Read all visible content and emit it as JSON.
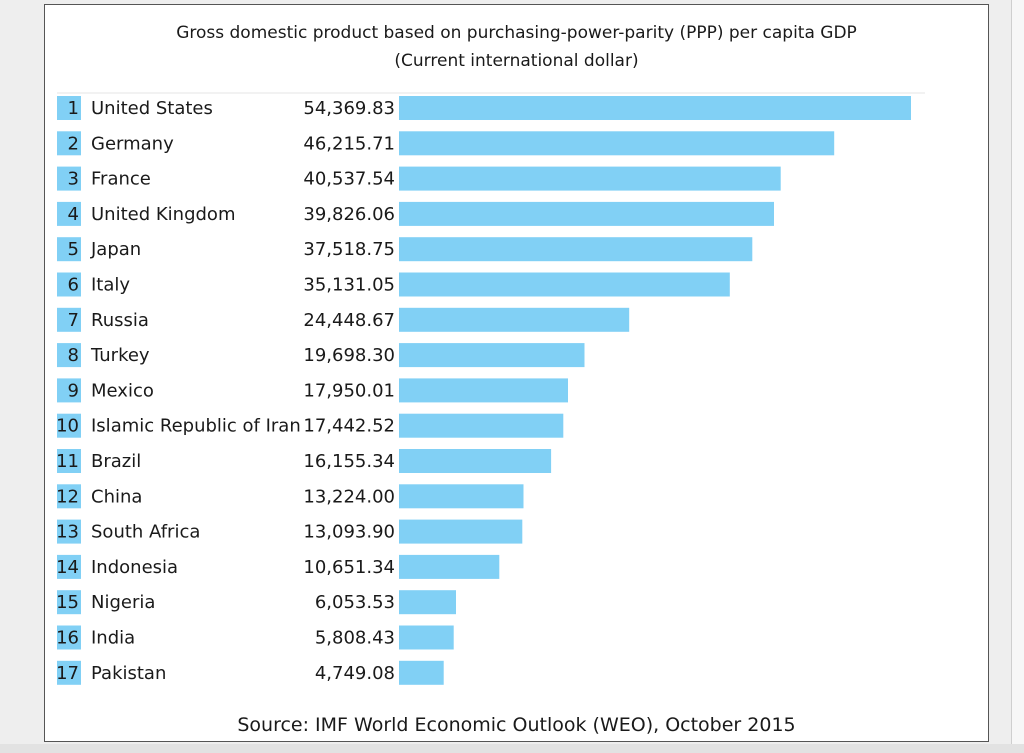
{
  "chart_data": {
    "type": "bar",
    "orientation": "horizontal",
    "title": "Gross domestic product based on purchasing-power-parity (PPP) per capita GDP",
    "subtitle": "(Current international dollar)",
    "source": "Source: IMF World Economic Outlook (WEO), October 2015",
    "ranks": [
      "1",
      "2",
      "3",
      "4",
      "5",
      "6",
      "7",
      "8",
      "9",
      "10",
      "11",
      "12",
      "13",
      "14",
      "15",
      "16",
      "17"
    ],
    "categories": [
      "United States",
      "Germany",
      "France",
      "United Kingdom",
      "Japan",
      "Italy",
      "Russia",
      "Turkey",
      "Mexico",
      "Islamic Republic of Iran",
      "Brazil",
      "China",
      "South Africa",
      "Indonesia",
      "Nigeria",
      "India",
      "Pakistan"
    ],
    "value_labels": [
      "54,369.83",
      "46,215.71",
      "40,537.54",
      "39,826.06",
      "37,518.75",
      "35,131.05",
      "24,448.67",
      "19,698.30",
      "17,950.01",
      "17,442.52",
      "16,155.34",
      "13,224.00",
      "13,093.90",
      "10,651.34",
      "6,053.53",
      "5,808.43",
      "4,749.08"
    ],
    "values": [
      54369.83,
      46215.71,
      40537.54,
      39826.06,
      37518.75,
      35131.05,
      24448.67,
      19698.3,
      17950.01,
      17442.52,
      16155.34,
      13224.0,
      13093.9,
      10651.34,
      6053.53,
      5808.43,
      4749.08
    ],
    "grid": false,
    "legend": "none",
    "colors": {
      "bar": "#81d0f5",
      "rank_box": "#81d0f5",
      "text": "#1a1a1a"
    }
  }
}
